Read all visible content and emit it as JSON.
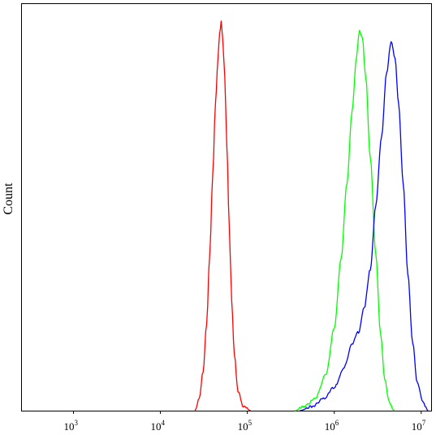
{
  "chart_data": {
    "type": "line",
    "ylabel": "Count",
    "xlabel": "",
    "x_scale": "log",
    "x_tick_labels": [
      {
        "base": "10",
        "exp": "3",
        "value": 1000
      },
      {
        "base": "10",
        "exp": "4",
        "value": 10000
      },
      {
        "base": "10",
        "exp": "5",
        "value": 100000
      },
      {
        "base": "10",
        "exp": "6",
        "value": 1000000
      },
      {
        "base": "10",
        "exp": "7",
        "value": 10000000
      }
    ],
    "xlim": [
      250,
      13000000
    ],
    "ylim": [
      0,
      1.0
    ],
    "grid": false,
    "legend": "none",
    "series": [
      {
        "color": "#ff0000",
        "x": [
          25000,
          28000,
          31000,
          34000,
          37000,
          40000,
          43000,
          46000,
          48000,
          50000,
          52000,
          55000,
          58000,
          62000,
          66000,
          71000,
          78000,
          90000,
          110000
        ],
        "y": [
          0.0,
          0.03,
          0.1,
          0.22,
          0.4,
          0.6,
          0.78,
          0.9,
          0.96,
          0.99,
          0.95,
          0.85,
          0.68,
          0.47,
          0.28,
          0.14,
          0.05,
          0.01,
          0.0
        ]
      },
      {
        "color": "#00ff00",
        "x": [
          350000,
          450000,
          600000,
          800000,
          1000000,
          1200000,
          1400000,
          1600000,
          1800000,
          1950000,
          2100000,
          2300000,
          2600000,
          3000000,
          3400000,
          3800000,
          4300000,
          4900000
        ],
        "y": [
          0.0,
          0.01,
          0.03,
          0.09,
          0.21,
          0.39,
          0.58,
          0.76,
          0.9,
          0.97,
          0.95,
          0.85,
          0.64,
          0.4,
          0.2,
          0.08,
          0.02,
          0.0
        ]
      },
      {
        "color": "#0000ff",
        "x": [
          400000,
          550000,
          750000,
          1000000,
          1300000,
          1600000,
          1900000,
          2200000,
          2600000,
          3000000,
          3500000,
          4000000,
          4500000,
          5000000,
          5500000,
          6200000,
          7000000,
          8000000,
          9000000,
          10500000,
          12000000
        ],
        "y": [
          0.0,
          0.01,
          0.03,
          0.06,
          0.11,
          0.17,
          0.2,
          0.26,
          0.36,
          0.52,
          0.7,
          0.86,
          0.94,
          0.9,
          0.78,
          0.58,
          0.35,
          0.17,
          0.07,
          0.02,
          0.0
        ]
      }
    ]
  }
}
